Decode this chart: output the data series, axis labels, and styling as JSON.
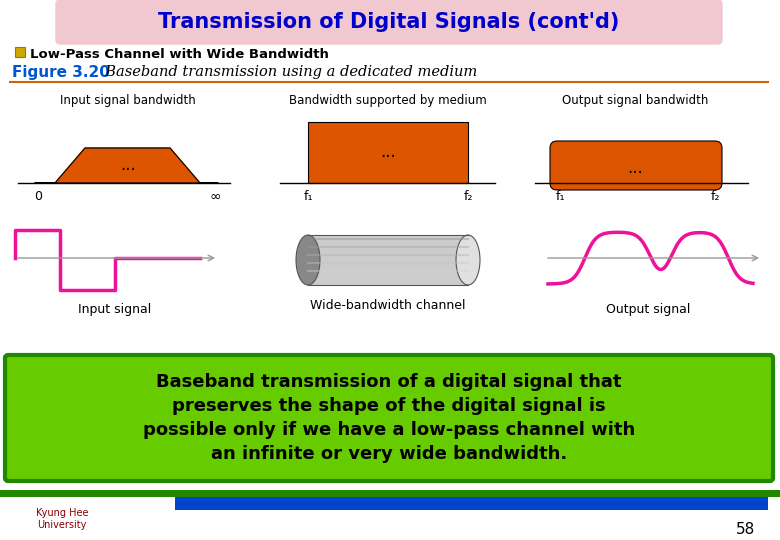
{
  "title": "Transmission of Digital Signals (cont'd)",
  "title_bg": "#f2c8d0",
  "title_color": "#0000cc",
  "bullet_color": "#ccaa00",
  "bullet_text": "Low-Pass Channel with Wide Bandwidth",
  "fig3_label": "Figure 3.20",
  "fig3_italic": "  Baseband transmission using a dedicated medium",
  "fig3_label_color": "#0055cc",
  "separator_color": "#cc6600",
  "panel1_title": "Input signal bandwidth",
  "panel2_title": "Bandwidth supported by medium",
  "panel3_title": "Output signal bandwidth",
  "signal1_label": "Input signal",
  "signal2_label": "Wide-bandwidth channel",
  "signal3_label": "Output signal",
  "orange_color": "#dd5500",
  "pink_color": "#ee1199",
  "green_bg": "#66cc00",
  "green_border": "#228800",
  "box_text_line1": "Baseband transmission of a digital signal that",
  "box_text_line2": "preserves the shape of the digital signal is",
  "box_text_line3": "possible only if we have a low-pass channel with",
  "box_text_line4": "an infinite or very wide bandwidth.",
  "box_text_color": "#000000",
  "page_num": "58",
  "footer_bar_color": "#0044cc",
  "footer_top_color": "#228800",
  "bg_color": "#ffffff"
}
